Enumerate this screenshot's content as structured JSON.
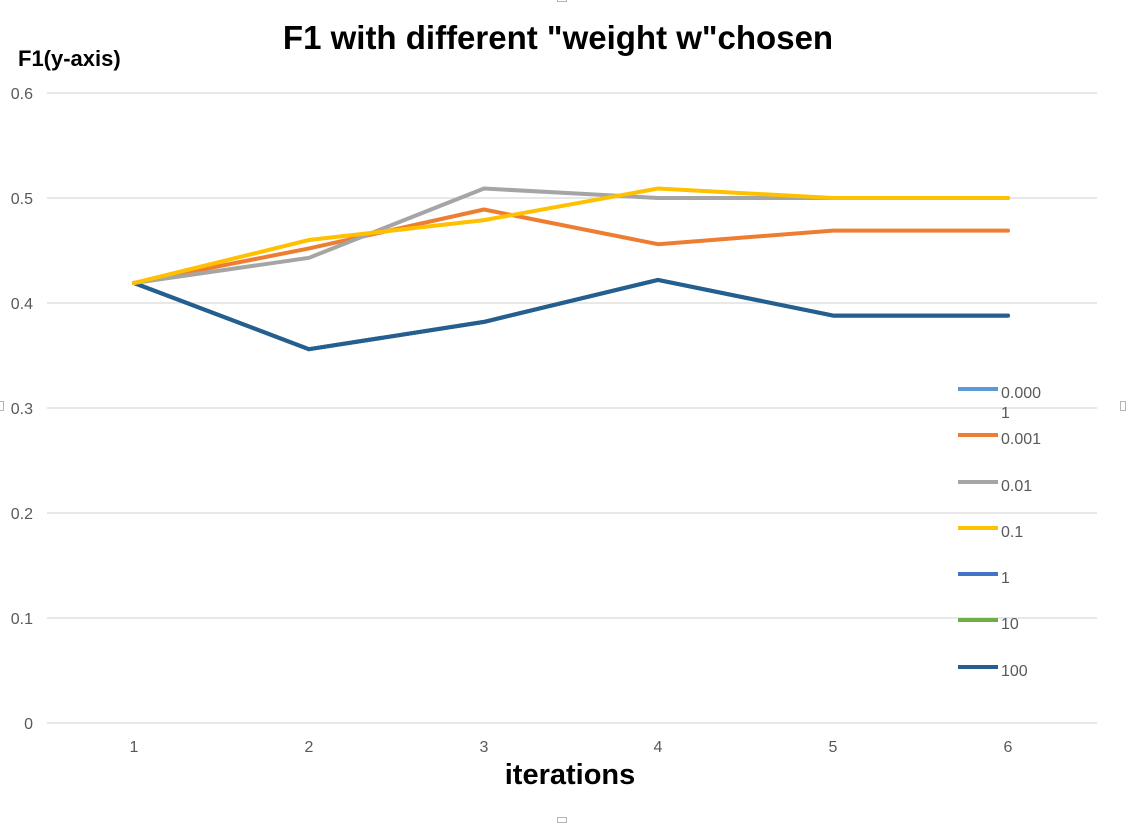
{
  "chart_data": {
    "type": "line",
    "title": "F1 with different \"weight w\"chosen",
    "ylabel": "F1(y-axis)",
    "xlabel": "iterations",
    "x": [
      1,
      2,
      3,
      4,
      5,
      6
    ],
    "ylim": [
      0,
      0.6
    ],
    "yticks": [
      "0",
      "0.1",
      "0.2",
      "0.3",
      "0.4",
      "0.5",
      "0.6"
    ],
    "grid": true,
    "legend_position": "right",
    "series": [
      {
        "name": "0.000\n1",
        "color": "#5b9bd5",
        "values": [
          0.419,
          0.356,
          0.382,
          0.422,
          0.388,
          0.388
        ]
      },
      {
        "name": "0.001",
        "color": "#ed7d31",
        "values": [
          0.419,
          0.452,
          0.489,
          0.456,
          0.469,
          0.469
        ]
      },
      {
        "name": "0.01",
        "color": "#a5a5a5",
        "values": [
          0.419,
          0.443,
          0.509,
          0.5,
          0.5,
          0.5
        ]
      },
      {
        "name": "0.1",
        "color": "#ffc000",
        "values": [
          0.419,
          0.46,
          0.479,
          0.509,
          0.5,
          0.5
        ]
      },
      {
        "name": "1",
        "color": "#4472c4",
        "values": [
          0.419,
          0.356,
          0.382,
          0.422,
          0.388,
          0.388
        ]
      },
      {
        "name": "10",
        "color": "#70ad47",
        "values": [
          0.419,
          0.356,
          0.382,
          0.422,
          0.388,
          0.388
        ]
      },
      {
        "name": "100",
        "color": "#255e91",
        "values": [
          0.419,
          0.356,
          0.382,
          0.422,
          0.388,
          0.388
        ]
      }
    ]
  }
}
